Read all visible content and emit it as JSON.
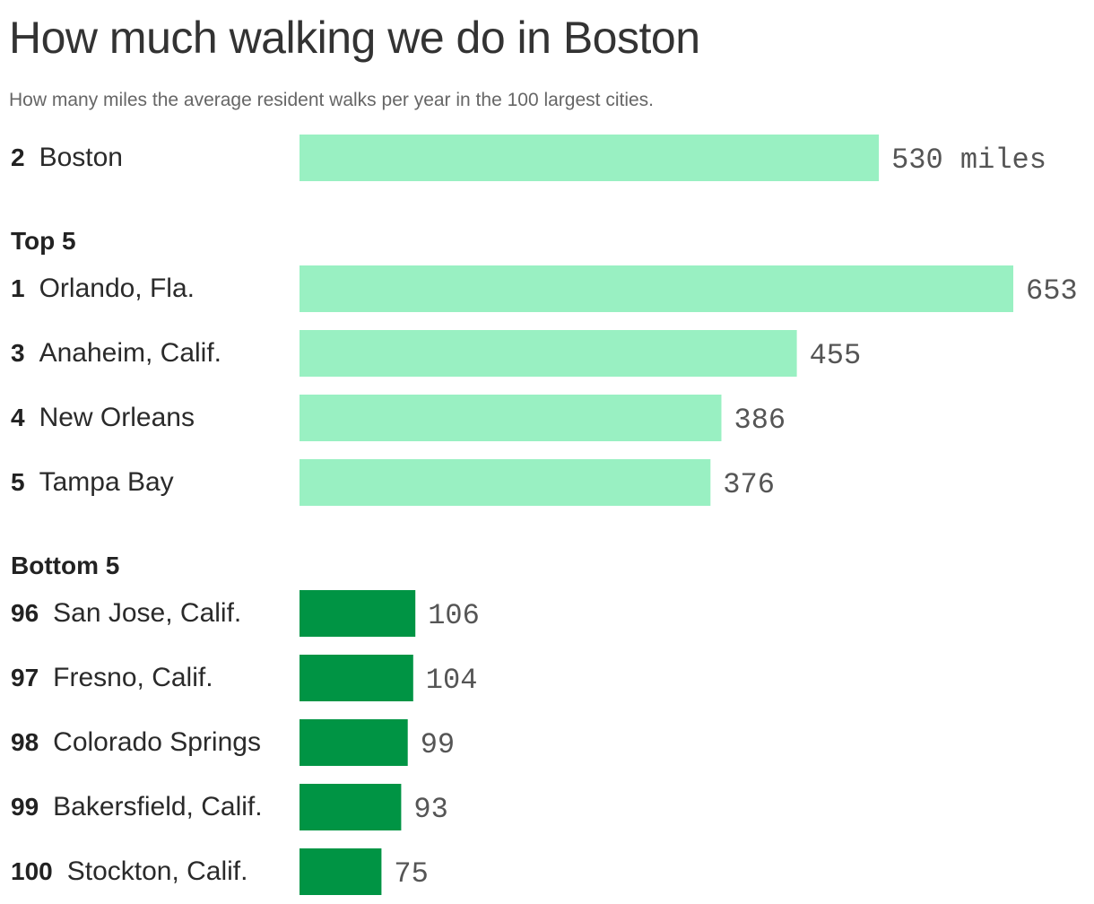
{
  "title": "How much walking we do in Boston",
  "subtitle": "How many miles the average resident walks per year in the 100 largest cities.",
  "colors": {
    "light_bar": "#99f0c2",
    "dark_bar": "#009444"
  },
  "chart_data": {
    "type": "bar",
    "orientation": "horizontal",
    "unit": "miles",
    "sections": [
      {
        "heading": "",
        "style": "light",
        "rows": [
          {
            "rank": "2",
            "city": "Boston",
            "value": 530,
            "label": "530 miles"
          }
        ]
      },
      {
        "heading": "Top 5",
        "style": "light",
        "rows": [
          {
            "rank": "1",
            "city": "Orlando, Fla.",
            "value": 653,
            "label": "653"
          },
          {
            "rank": "3",
            "city": "Anaheim, Calif.",
            "value": 455,
            "label": "455"
          },
          {
            "rank": "4",
            "city": "New Orleans",
            "value": 386,
            "label": "386"
          },
          {
            "rank": "5",
            "city": "Tampa Bay",
            "value": 376,
            "label": "376"
          }
        ]
      },
      {
        "heading": "Bottom 5",
        "style": "dark",
        "rows": [
          {
            "rank": "96",
            "city": "San Jose, Calif.",
            "value": 106,
            "label": "106"
          },
          {
            "rank": "97",
            "city": "Fresno, Calif.",
            "value": 104,
            "label": "104"
          },
          {
            "rank": "98",
            "city": "Colorado Springs",
            "value": 99,
            "label": "99"
          },
          {
            "rank": "99",
            "city": "Bakersfield, Calif.",
            "value": 93,
            "label": "93"
          },
          {
            "rank": "100",
            "city": "Stockton, Calif.",
            "value": 75,
            "label": "75"
          }
        ]
      }
    ],
    "xlim": [
      0,
      653
    ]
  }
}
